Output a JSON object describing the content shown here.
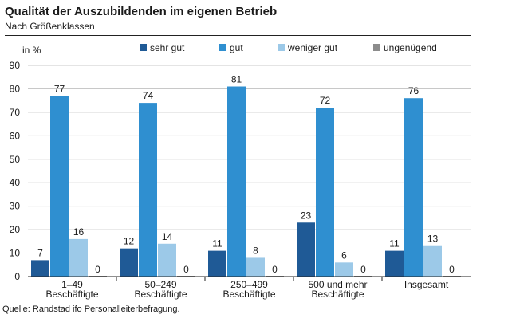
{
  "header": {
    "title": "Qualität der Auszubildenden im eigenen Betrieb",
    "subtitle": "Nach Größenklassen"
  },
  "footer": {
    "source": "Quelle: Randstad ifo Personalleiterbefragung."
  },
  "chart_data": {
    "type": "bar",
    "ylabel": "in %",
    "ylim": [
      0,
      90
    ],
    "yticks": [
      0,
      10,
      20,
      30,
      40,
      50,
      60,
      70,
      80,
      90
    ],
    "grid": true,
    "legend_position": "top",
    "categories": [
      [
        "1–49",
        "Beschäftigte"
      ],
      [
        "50–249",
        "Beschäftigte"
      ],
      [
        "250–499",
        "Beschäftigte"
      ],
      [
        "500 und mehr",
        "Beschäftigte"
      ],
      [
        "Insgesamt"
      ]
    ],
    "series": [
      {
        "name": "sehr gut",
        "color": "#1f5a96",
        "values": [
          7,
          12,
          11,
          23,
          11
        ]
      },
      {
        "name": "gut",
        "color": "#2f8fd0",
        "values": [
          77,
          74,
          81,
          72,
          76
        ]
      },
      {
        "name": "weniger gut",
        "color": "#9cc9e8",
        "values": [
          16,
          14,
          8,
          6,
          13
        ]
      },
      {
        "name": "ungenügend",
        "color": "#8c8c8c",
        "values": [
          0,
          0,
          0,
          0,
          0
        ]
      }
    ]
  }
}
